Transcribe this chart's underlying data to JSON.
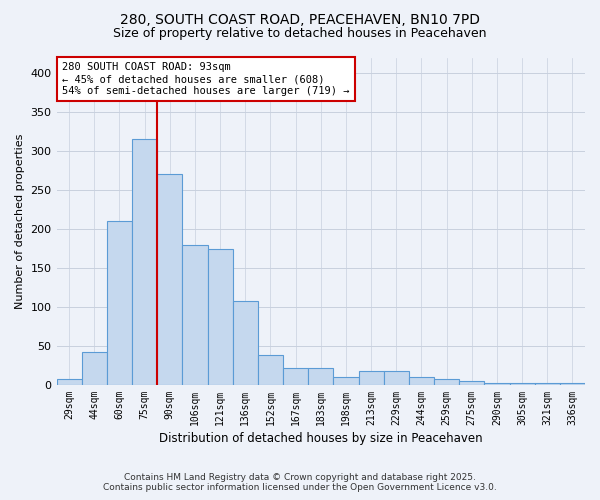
{
  "title_line1": "280, SOUTH COAST ROAD, PEACEHAVEN, BN10 7PD",
  "title_line2": "Size of property relative to detached houses in Peacehaven",
  "xlabel": "Distribution of detached houses by size in Peacehaven",
  "ylabel": "Number of detached properties",
  "categories": [
    "29sqm",
    "44sqm",
    "60sqm",
    "75sqm",
    "90sqm",
    "106sqm",
    "121sqm",
    "136sqm",
    "152sqm",
    "167sqm",
    "183sqm",
    "198sqm",
    "213sqm",
    "229sqm",
    "244sqm",
    "259sqm",
    "275sqm",
    "290sqm",
    "305sqm",
    "321sqm",
    "336sqm"
  ],
  "values": [
    8,
    42,
    210,
    315,
    270,
    180,
    175,
    108,
    38,
    22,
    22,
    10,
    18,
    18,
    10,
    8,
    5,
    2,
    2,
    2,
    3
  ],
  "highlight_index": 4,
  "bar_color": "#c5d8ee",
  "bar_edge_color": "#5b9bd5",
  "highlight_line_color": "#cc0000",
  "annotation_text": "280 SOUTH COAST ROAD: 93sqm\n← 45% of detached houses are smaller (608)\n54% of semi-detached houses are larger (719) →",
  "annotation_box_color": "#ffffff",
  "annotation_box_edge": "#cc0000",
  "footer_line1": "Contains HM Land Registry data © Crown copyright and database right 2025.",
  "footer_line2": "Contains public sector information licensed under the Open Government Licence v3.0.",
  "ylim": [
    0,
    420
  ],
  "yticks": [
    0,
    50,
    100,
    150,
    200,
    250,
    300,
    350,
    400
  ],
  "background_color": "#eef2f9",
  "grid_color": "#c8d0de"
}
